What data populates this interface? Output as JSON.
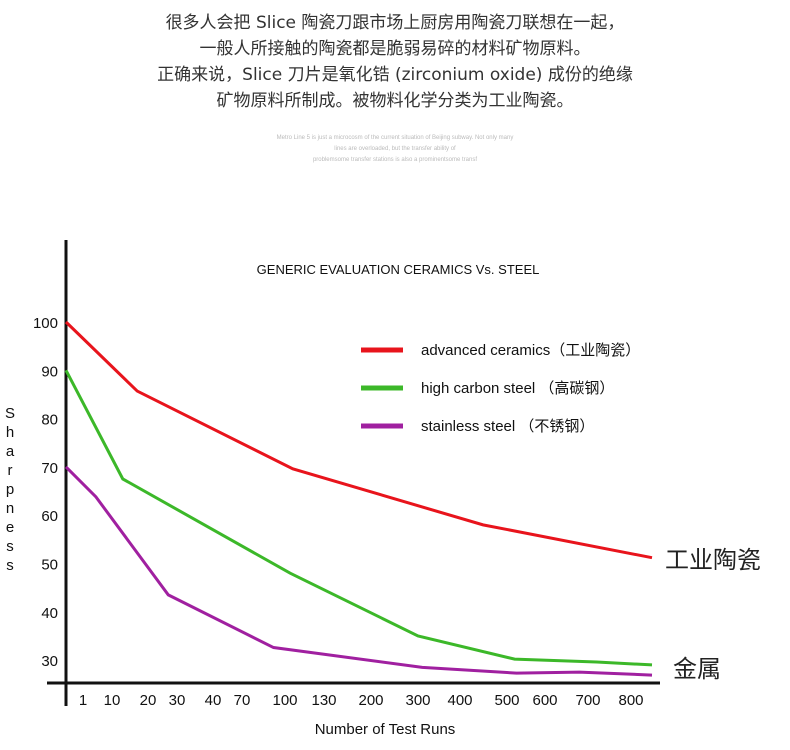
{
  "intro_lines": [
    "很多人会把 Slice 陶瓷刀跟市场上厨房用陶瓷刀联想在一起，",
    "一般人所接触的陶瓷都是脆弱易碎的材料矿物原料。",
    "正确来说，Slice 刀片是氧化锆 (zirconium oxide) 成份的绝缘",
    "矿物原料所制成。被物料化学分类为工业陶瓷。"
  ],
  "small_lines": [
    "Metro Line 5 is just a microcosm of the current situation of Beijing subway. Not only many",
    "lines are overloaded, but the transfer ability of",
    "problemsome transfer stations is also a prominentsome transf"
  ],
  "chart_data": {
    "type": "line",
    "title": "GENERIC EVALUATION CERAMICS Vs. STEEL",
    "xlabel": "Number of Test Runs",
    "ylabel": "Sharpness",
    "x_ticks": [
      1,
      10,
      20,
      30,
      40,
      70,
      100,
      130,
      200,
      300,
      400,
      500,
      600,
      700,
      800
    ],
    "y_ticks": [
      30,
      40,
      50,
      60,
      70,
      80,
      90,
      100
    ],
    "ylim": [
      25,
      100
    ],
    "legend_position": "top-right",
    "grid": false,
    "series": [
      {
        "name": "advanced ceramics（工业陶瓷）",
        "color": "#e8141c",
        "x": [
          0,
          17,
          106,
          449,
          850
        ],
        "y": [
          100,
          85.7,
          69.6,
          58,
          51.2
        ]
      },
      {
        "name": "high carbon steel （高碳钢）",
        "color": "#3cb829",
        "x": [
          0,
          13,
          104,
          300,
          520,
          720,
          850
        ],
        "y": [
          90,
          67.5,
          48,
          35,
          30.2,
          29.6,
          29
        ]
      },
      {
        "name": "stainless steel （不锈钢）",
        "color": "#a020a0",
        "x": [
          0,
          5,
          27,
          92,
          310,
          525,
          680,
          850
        ],
        "y": [
          70,
          63.8,
          43.5,
          32.6,
          28.5,
          27.3,
          27.5,
          26.9
        ]
      }
    ],
    "annotations": [
      "工业陶瓷",
      "金属"
    ]
  }
}
